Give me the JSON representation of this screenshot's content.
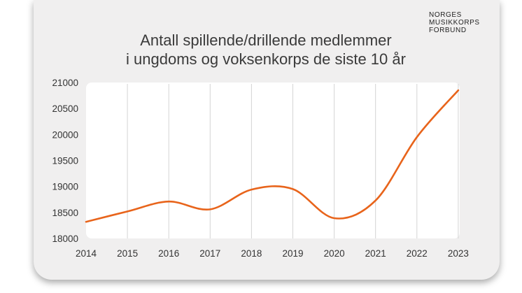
{
  "logo": {
    "lines": [
      "NORGES",
      "MUSIKKORPS",
      "FORBUND"
    ]
  },
  "chart_data": {
    "type": "line",
    "title_lines": [
      "Antall spillende/drillende medlemmer",
      "i ungdoms og voksenkorps de siste 10 år"
    ],
    "x": [
      "2014",
      "2015",
      "2016",
      "2017",
      "2018",
      "2019",
      "2020",
      "2021",
      "2022",
      "2023"
    ],
    "series": [
      {
        "values": [
          18320,
          18520,
          18710,
          18560,
          18940,
          18950,
          18390,
          18730,
          19950,
          20850
        ]
      }
    ],
    "ylim": [
      18000,
      21000
    ],
    "yticks": [
      18000,
      18500,
      19000,
      19500,
      20000,
      20500,
      21000
    ],
    "grid": "vertical",
    "line_color": "#e8641b",
    "plot_bg": "#ffffff"
  }
}
